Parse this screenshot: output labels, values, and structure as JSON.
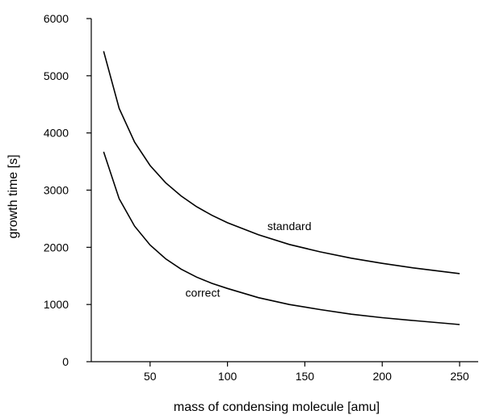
{
  "chart_data": {
    "type": "line",
    "title": "",
    "xlabel": "mass of condensing molecule [amu]",
    "ylabel": "growth time [s]",
    "xlim": [
      12,
      262
    ],
    "ylim": [
      0,
      6000
    ],
    "xticks": [
      50,
      100,
      150,
      200,
      250
    ],
    "yticks": [
      0,
      1000,
      2000,
      3000,
      4000,
      5000,
      6000
    ],
    "grid": false,
    "series": [
      {
        "name": "standard",
        "x": [
          20,
          30,
          40,
          50,
          60,
          70,
          80,
          90,
          100,
          120,
          140,
          160,
          180,
          200,
          220,
          250
        ],
        "y": [
          5430,
          4430,
          3840,
          3430,
          3130,
          2900,
          2710,
          2560,
          2430,
          2220,
          2050,
          1920,
          1810,
          1720,
          1640,
          1540
        ]
      },
      {
        "name": "correct",
        "x": [
          20,
          30,
          40,
          50,
          60,
          70,
          80,
          90,
          100,
          120,
          140,
          160,
          180,
          200,
          220,
          250
        ],
        "y": [
          3670,
          2850,
          2370,
          2040,
          1800,
          1620,
          1480,
          1370,
          1280,
          1120,
          1000,
          910,
          830,
          770,
          720,
          650
        ]
      }
    ],
    "annotations": [
      {
        "text": "standard",
        "x": 140,
        "y": 2300
      },
      {
        "text": "correct",
        "x": 84,
        "y": 1140
      }
    ]
  }
}
